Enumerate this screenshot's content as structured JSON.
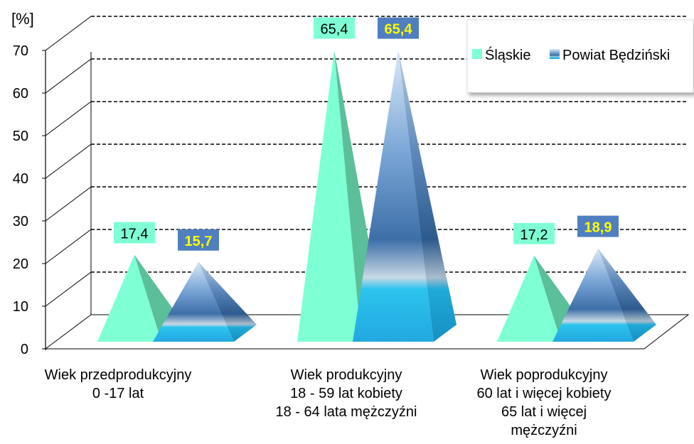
{
  "chart_data": {
    "type": "bar",
    "title": "",
    "ylabel": "[%]",
    "xlabel": "",
    "ylim": [
      0,
      70
    ],
    "yticks": [
      "0",
      "10",
      "20",
      "30",
      "40",
      "50",
      "60",
      "70"
    ],
    "grid": true,
    "legend_position": "top-right",
    "categories": [
      [
        "Wiek przedprodukcyjny",
        "0 -17 lat"
      ],
      [
        "Wiek produkcyjny",
        "18 - 59 lat kobiety",
        "18 - 64 lata mężczyźni"
      ],
      [
        "Wiek poprodukcyjny",
        "60 lat i więcej kobiety",
        "65 lat i więcej",
        "mężczyźni"
      ]
    ],
    "series": [
      {
        "name": "Śląskie",
        "values": [
          17.4,
          65.4,
          17.2
        ],
        "labels": [
          "17,4",
          "65,4",
          "17,2"
        ],
        "color": "#7fffd4"
      },
      {
        "name": "Powiat Będziński",
        "values": [
          15.7,
          65.4,
          18.9
        ],
        "labels": [
          "15,7",
          "65,4",
          "18,9"
        ],
        "color": "#2f7fd0"
      }
    ],
    "mark_shape": "pyramid"
  }
}
